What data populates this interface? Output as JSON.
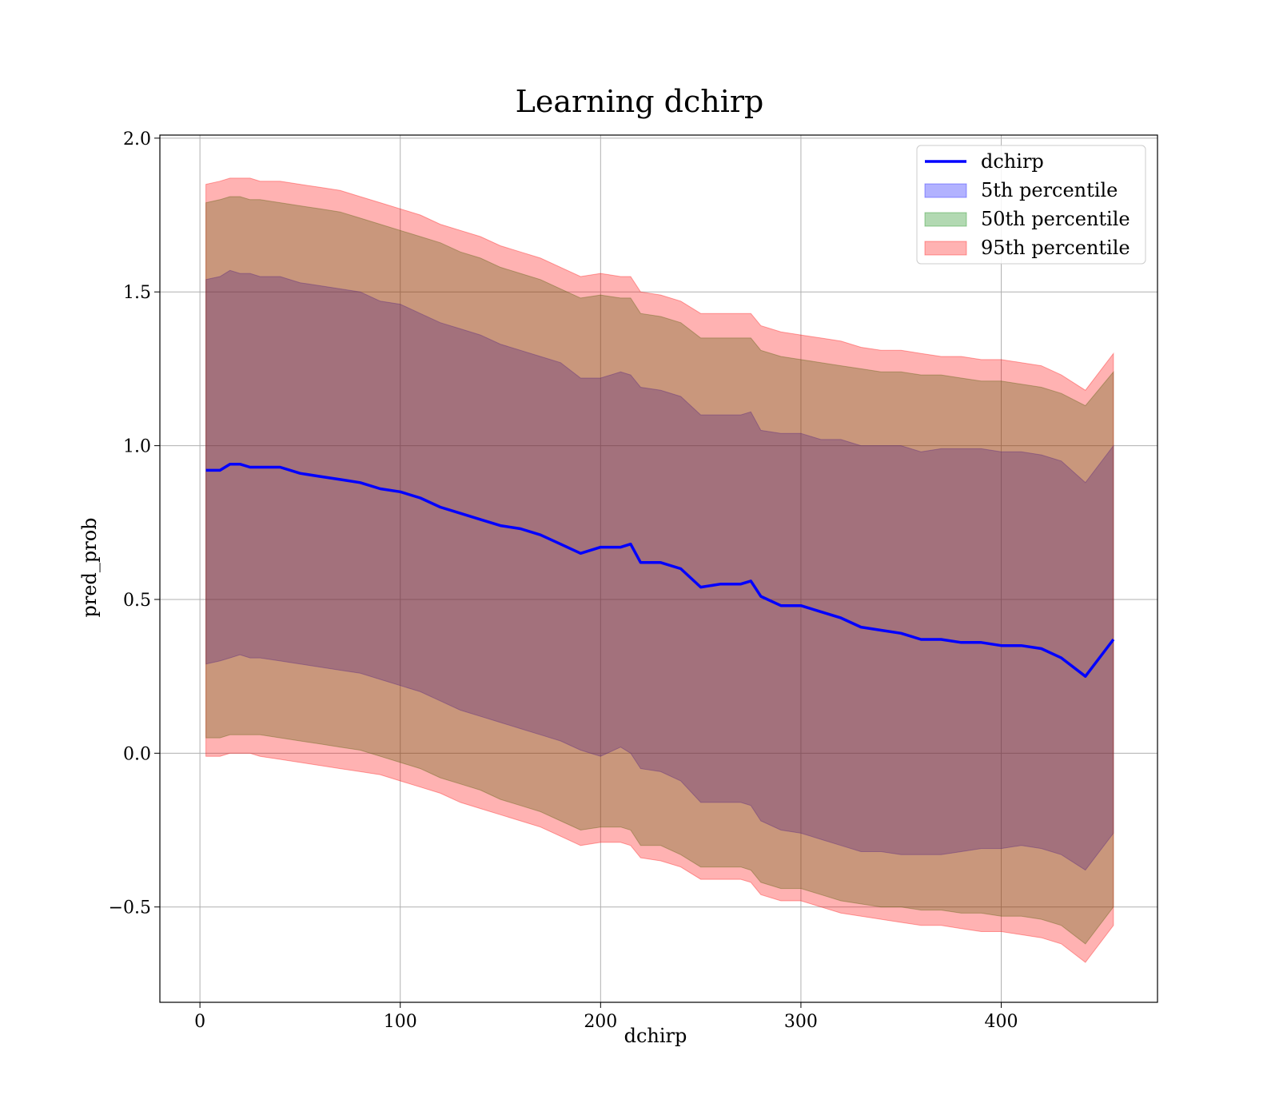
{
  "chart_data": {
    "type": "area",
    "title": "Learning dchirp",
    "xlabel": "dchirp",
    "ylabel": "pred_prob",
    "xlim": [
      -20,
      478
    ],
    "ylim": [
      -0.81,
      2.01
    ],
    "xticks": [
      0,
      100,
      200,
      300,
      400
    ],
    "xtick_labels": [
      "0",
      "100",
      "200",
      "300",
      "400"
    ],
    "yticks": [
      -0.5,
      0.0,
      0.5,
      1.0,
      1.5,
      2.0
    ],
    "ytick_labels": [
      "−0.5",
      "0.0",
      "0.5",
      "1.0",
      "1.5",
      "2.0"
    ],
    "grid": true,
    "legend_position": "top-right",
    "colors": {
      "line": "#0000ff",
      "band_5": "#0000ff",
      "band_50": "#008000",
      "band_95": "#ff0000"
    },
    "legend": [
      {
        "label": "dchirp",
        "kind": "line",
        "color": "#0000ff"
      },
      {
        "label": "5th percentile",
        "kind": "patch",
        "color": "#0000ff"
      },
      {
        "label": "50th percentile",
        "kind": "patch",
        "color": "#008000"
      },
      {
        "label": "95th percentile",
        "kind": "patch",
        "color": "#ff0000"
      }
    ],
    "x": [
      3,
      10,
      15,
      20,
      25,
      30,
      40,
      50,
      60,
      70,
      80,
      90,
      100,
      110,
      120,
      130,
      140,
      150,
      160,
      170,
      180,
      190,
      200,
      210,
      215,
      220,
      230,
      240,
      250,
      260,
      270,
      275,
      280,
      290,
      300,
      310,
      320,
      330,
      340,
      350,
      360,
      370,
      380,
      390,
      400,
      410,
      420,
      430,
      442,
      456
    ],
    "series": [
      {
        "name": "dchirp",
        "values": [
          0.92,
          0.92,
          0.94,
          0.94,
          0.93,
          0.93,
          0.93,
          0.91,
          0.9,
          0.89,
          0.88,
          0.86,
          0.85,
          0.83,
          0.8,
          0.78,
          0.76,
          0.74,
          0.73,
          0.71,
          0.68,
          0.65,
          0.67,
          0.67,
          0.68,
          0.62,
          0.62,
          0.6,
          0.54,
          0.55,
          0.55,
          0.56,
          0.51,
          0.48,
          0.48,
          0.46,
          0.44,
          0.41,
          0.4,
          0.39,
          0.37,
          0.37,
          0.36,
          0.36,
          0.35,
          0.35,
          0.34,
          0.31,
          0.25,
          0.37
        ]
      },
      {
        "name": "5th percentile",
        "lower": [
          0.29,
          0.3,
          0.31,
          0.32,
          0.31,
          0.31,
          0.3,
          0.29,
          0.28,
          0.27,
          0.26,
          0.24,
          0.22,
          0.2,
          0.17,
          0.14,
          0.12,
          0.1,
          0.08,
          0.06,
          0.04,
          0.01,
          -0.01,
          0.02,
          0.0,
          -0.05,
          -0.06,
          -0.09,
          -0.16,
          -0.16,
          -0.16,
          -0.17,
          -0.22,
          -0.25,
          -0.26,
          -0.28,
          -0.3,
          -0.32,
          -0.32,
          -0.33,
          -0.33,
          -0.33,
          -0.32,
          -0.31,
          -0.31,
          -0.3,
          -0.31,
          -0.33,
          -0.38,
          -0.26
        ],
        "upper": [
          1.54,
          1.55,
          1.57,
          1.56,
          1.56,
          1.55,
          1.55,
          1.53,
          1.52,
          1.51,
          1.5,
          1.47,
          1.46,
          1.43,
          1.4,
          1.38,
          1.36,
          1.33,
          1.31,
          1.29,
          1.27,
          1.22,
          1.22,
          1.24,
          1.23,
          1.19,
          1.18,
          1.16,
          1.1,
          1.1,
          1.1,
          1.11,
          1.05,
          1.04,
          1.04,
          1.02,
          1.02,
          1.0,
          1.0,
          1.0,
          0.98,
          0.99,
          0.99,
          0.99,
          0.98,
          0.98,
          0.97,
          0.95,
          0.88,
          1.0
        ]
      },
      {
        "name": "50th percentile",
        "lower": [
          0.05,
          0.05,
          0.06,
          0.06,
          0.06,
          0.06,
          0.05,
          0.04,
          0.03,
          0.02,
          0.01,
          -0.01,
          -0.03,
          -0.05,
          -0.08,
          -0.1,
          -0.12,
          -0.15,
          -0.17,
          -0.19,
          -0.22,
          -0.25,
          -0.24,
          -0.24,
          -0.25,
          -0.3,
          -0.3,
          -0.33,
          -0.37,
          -0.37,
          -0.37,
          -0.38,
          -0.42,
          -0.44,
          -0.44,
          -0.46,
          -0.48,
          -0.49,
          -0.5,
          -0.5,
          -0.51,
          -0.51,
          -0.52,
          -0.52,
          -0.53,
          -0.53,
          -0.54,
          -0.56,
          -0.62,
          -0.5
        ],
        "upper": [
          1.79,
          1.8,
          1.81,
          1.81,
          1.8,
          1.8,
          1.79,
          1.78,
          1.77,
          1.76,
          1.74,
          1.72,
          1.7,
          1.68,
          1.66,
          1.63,
          1.61,
          1.58,
          1.56,
          1.54,
          1.51,
          1.48,
          1.49,
          1.48,
          1.48,
          1.43,
          1.42,
          1.4,
          1.35,
          1.35,
          1.35,
          1.35,
          1.31,
          1.29,
          1.28,
          1.27,
          1.26,
          1.25,
          1.24,
          1.24,
          1.23,
          1.23,
          1.22,
          1.21,
          1.21,
          1.2,
          1.19,
          1.17,
          1.13,
          1.24
        ]
      },
      {
        "name": "95th percentile",
        "lower": [
          -0.01,
          -0.01,
          0.0,
          0.0,
          0.0,
          -0.01,
          -0.02,
          -0.03,
          -0.04,
          -0.05,
          -0.06,
          -0.07,
          -0.09,
          -0.11,
          -0.13,
          -0.16,
          -0.18,
          -0.2,
          -0.22,
          -0.24,
          -0.27,
          -0.3,
          -0.29,
          -0.29,
          -0.3,
          -0.34,
          -0.35,
          -0.37,
          -0.41,
          -0.41,
          -0.41,
          -0.42,
          -0.46,
          -0.48,
          -0.48,
          -0.5,
          -0.52,
          -0.53,
          -0.54,
          -0.55,
          -0.56,
          -0.56,
          -0.57,
          -0.58,
          -0.58,
          -0.59,
          -0.6,
          -0.62,
          -0.68,
          -0.56
        ],
        "upper": [
          1.85,
          1.86,
          1.87,
          1.87,
          1.87,
          1.86,
          1.86,
          1.85,
          1.84,
          1.83,
          1.81,
          1.79,
          1.77,
          1.75,
          1.72,
          1.7,
          1.68,
          1.65,
          1.63,
          1.61,
          1.58,
          1.55,
          1.56,
          1.55,
          1.55,
          1.5,
          1.49,
          1.47,
          1.43,
          1.43,
          1.43,
          1.43,
          1.39,
          1.37,
          1.36,
          1.35,
          1.34,
          1.32,
          1.31,
          1.31,
          1.3,
          1.29,
          1.29,
          1.28,
          1.28,
          1.27,
          1.26,
          1.23,
          1.18,
          1.3
        ]
      }
    ]
  }
}
